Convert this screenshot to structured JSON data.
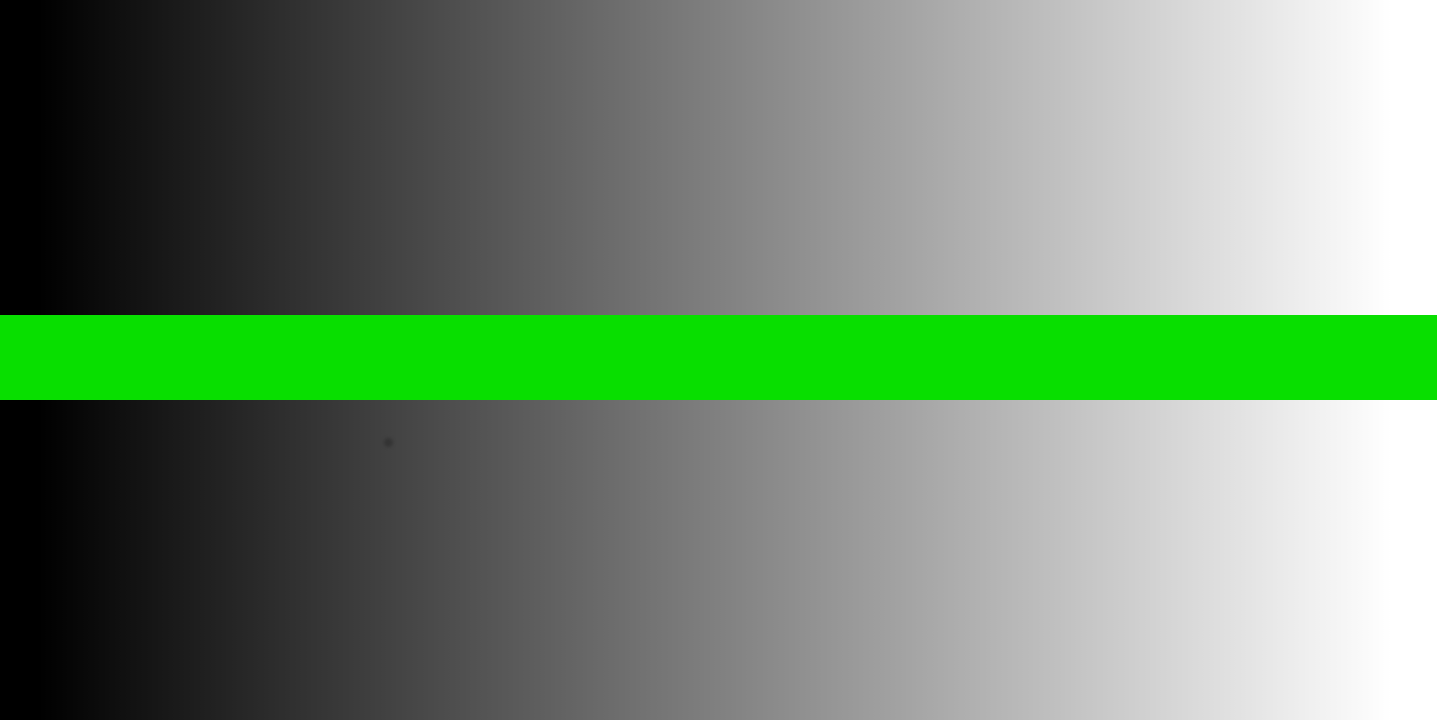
{
  "colors": {
    "gradient_start": "#000000",
    "gradient_end": "#ffffff",
    "bar": "#08df00"
  }
}
